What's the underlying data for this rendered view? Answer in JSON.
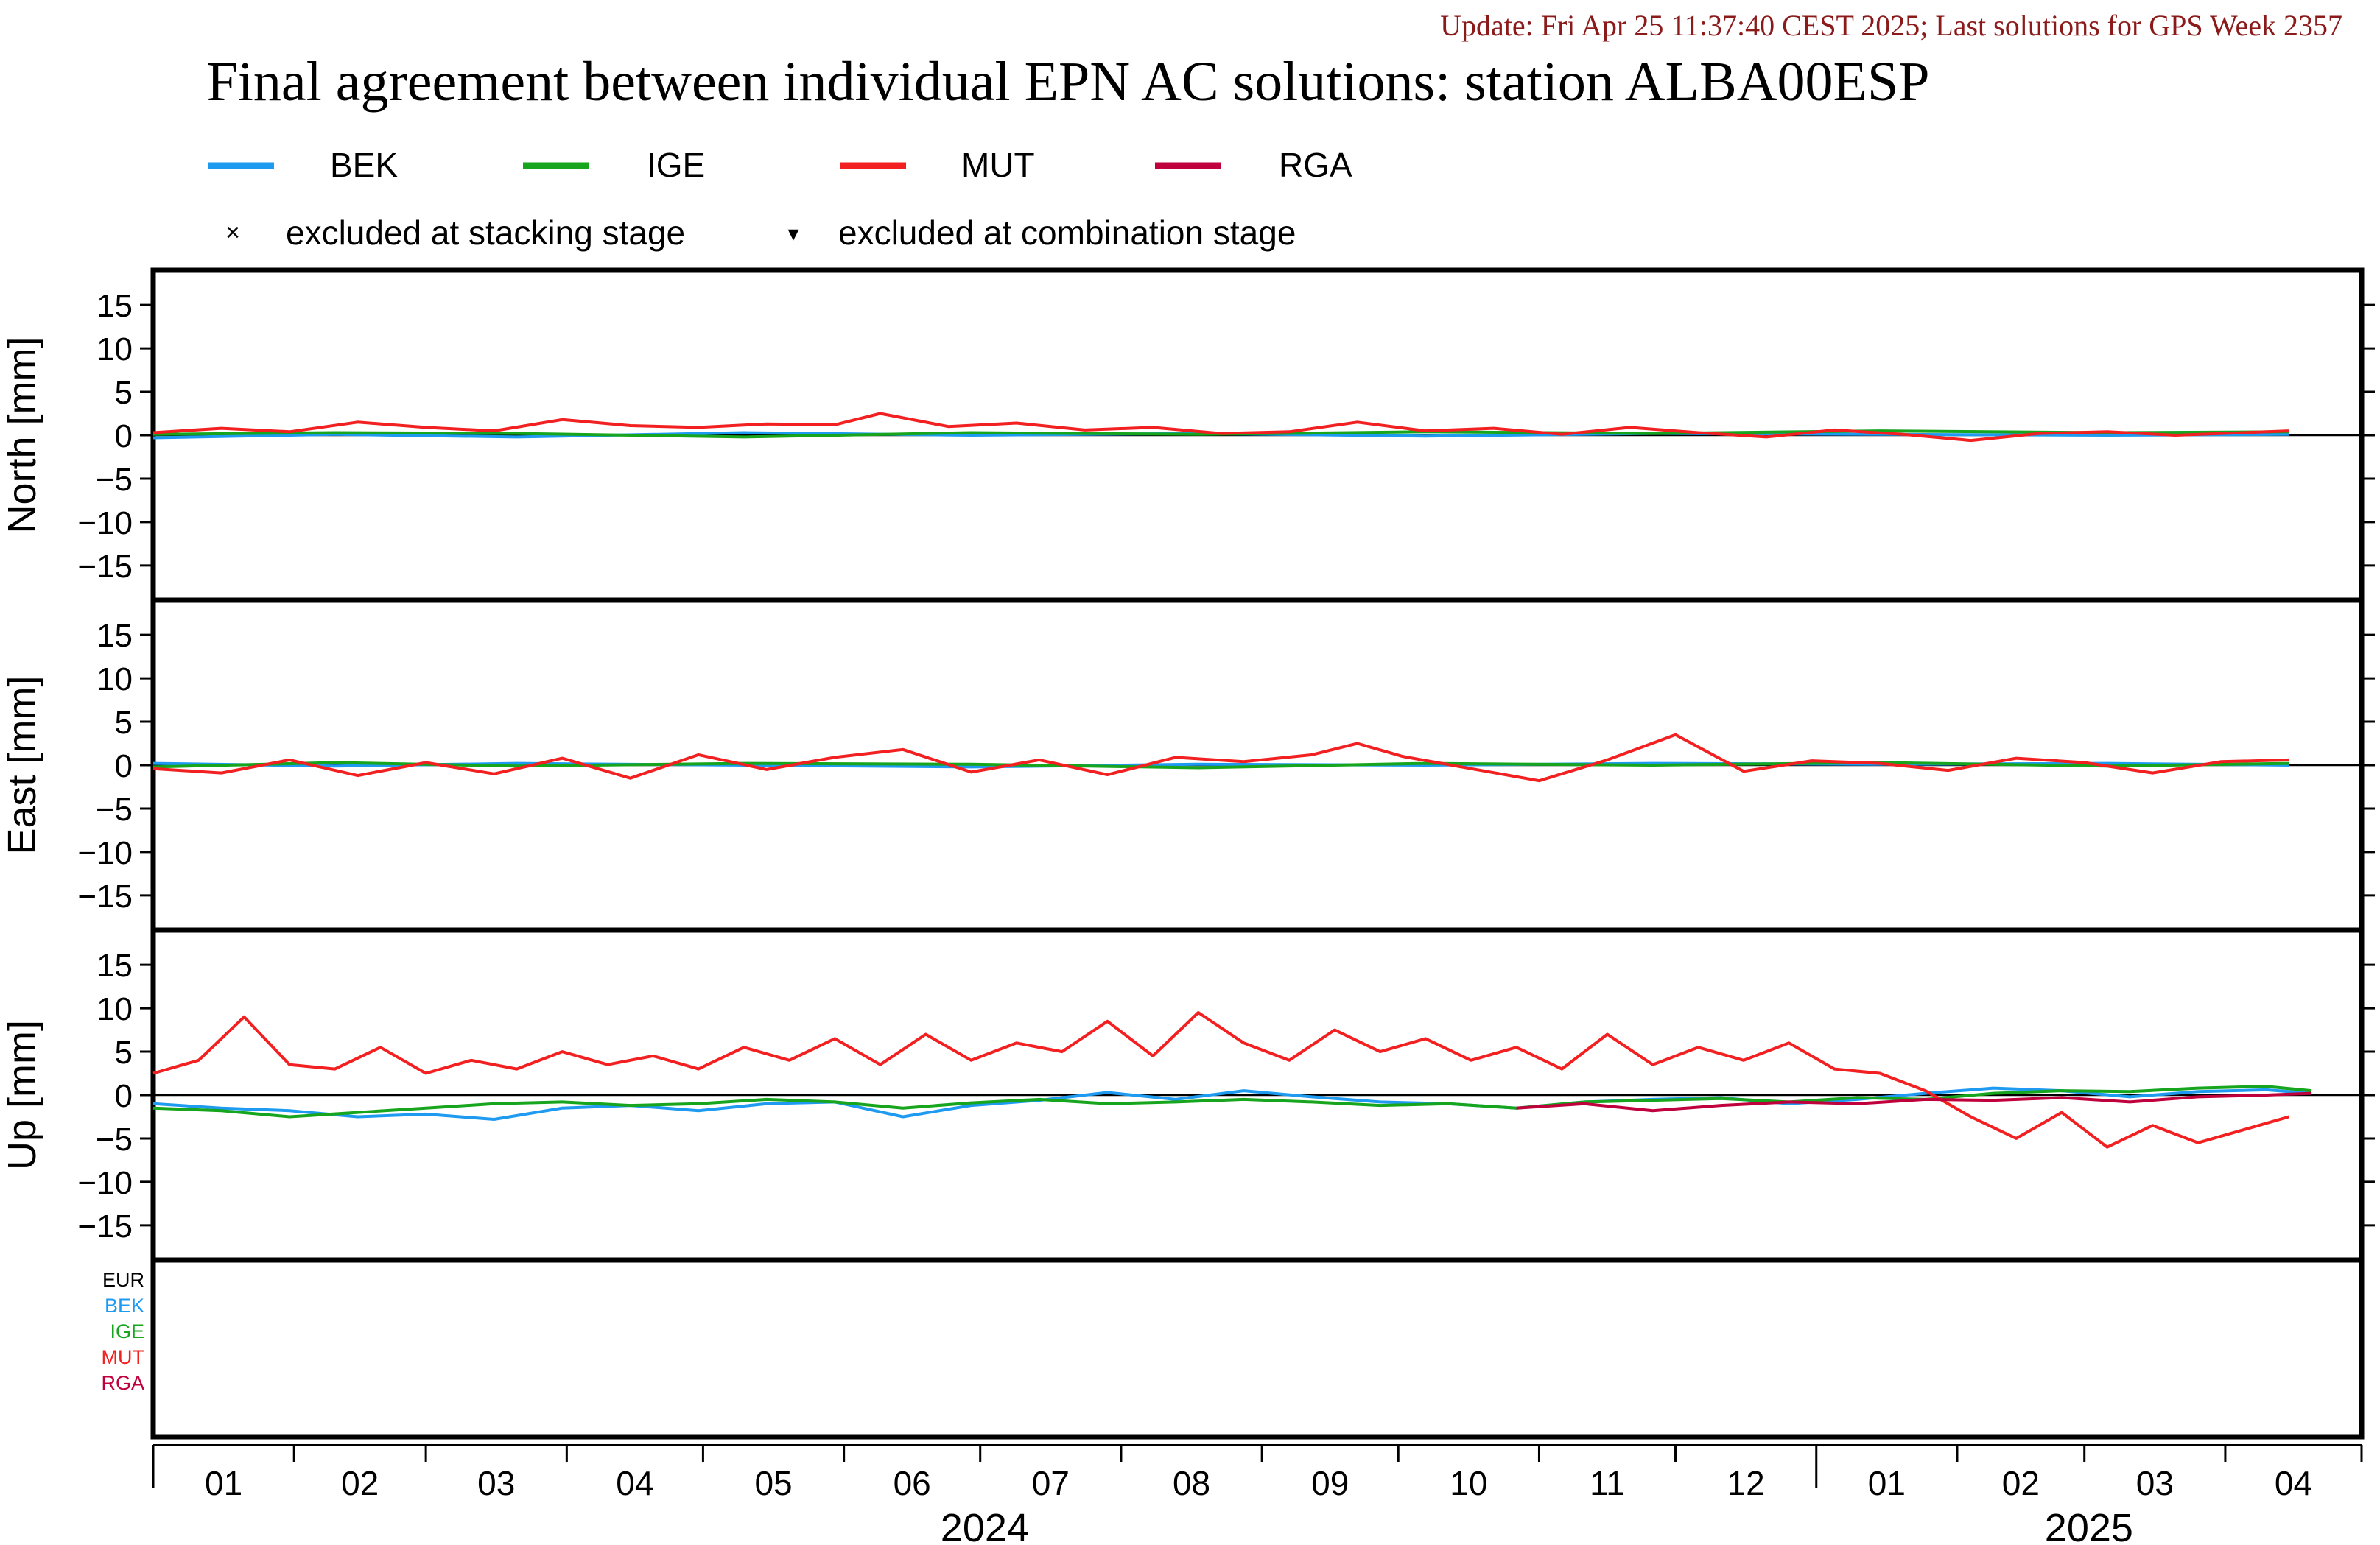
{
  "update_text": "Update: Fri Apr 25 11:37:40 CEST 2025; Last solutions for GPS Week 2357",
  "title": "Final agreement between individual EPN AC solutions: station ALBA00ESP",
  "colors": {
    "BEK": "#1e9bf0",
    "IGE": "#16a51c",
    "MUT": "#f22020",
    "RGA": "#c0003c",
    "EUR": "#000000",
    "update_text": "#8b1a1a",
    "frame": "#000000"
  },
  "legend": {
    "series": [
      {
        "key": "BEK",
        "label": "BEK"
      },
      {
        "key": "IGE",
        "label": "IGE"
      },
      {
        "key": "MUT",
        "label": "MUT"
      },
      {
        "key": "RGA",
        "label": "RGA"
      }
    ],
    "markers": [
      {
        "symbol": "×",
        "label": "excluded at stacking stage"
      },
      {
        "symbol": "▾",
        "label": "excluded at combination stage"
      }
    ]
  },
  "side_legend": [
    "EUR",
    "BEK",
    "IGE",
    "MUT",
    "RGA"
  ],
  "chart_data": [
    {
      "type": "line",
      "panel": "north",
      "ylabel": "North [mm]",
      "ylim": [
        -19,
        19
      ],
      "yticks": [
        15,
        10,
        5,
        0,
        -5,
        -10,
        -15
      ],
      "zero_line": true,
      "x_range_days": [
        0,
        483
      ],
      "series": [
        {
          "name": "BEK",
          "x": [
            0,
            40,
            80,
            130,
            180,
            230,
            280,
            330,
            380,
            430,
            470
          ],
          "y": [
            -0.3,
            0.1,
            -0.2,
            0.3,
            0.0,
            0.2,
            -0.1,
            0.2,
            0.1,
            0.0,
            0.1
          ]
        },
        {
          "name": "IGE",
          "x": [
            0,
            40,
            80,
            130,
            180,
            230,
            280,
            330,
            380,
            430,
            470
          ],
          "y": [
            0.1,
            0.3,
            0.2,
            -0.2,
            0.3,
            0.1,
            0.4,
            0.2,
            0.5,
            0.3,
            0.4
          ]
        },
        {
          "name": "MUT",
          "x": [
            0,
            15,
            30,
            45,
            60,
            75,
            90,
            105,
            120,
            135,
            150,
            160,
            175,
            190,
            205,
            220,
            235,
            250,
            265,
            280,
            295,
            310,
            325,
            340,
            355,
            370,
            385,
            400,
            415,
            430,
            445,
            460,
            470
          ],
          "y": [
            0.3,
            0.8,
            0.4,
            1.5,
            0.9,
            0.5,
            1.8,
            1.1,
            0.9,
            1.3,
            1.2,
            2.5,
            1.0,
            1.4,
            0.6,
            0.9,
            0.2,
            0.4,
            1.5,
            0.5,
            0.8,
            0.1,
            0.9,
            0.3,
            -0.2,
            0.6,
            0.1,
            -0.6,
            0.2,
            0.4,
            0.0,
            0.3,
            0.5
          ]
        }
      ]
    },
    {
      "type": "line",
      "panel": "east",
      "ylabel": "East [mm]",
      "ylim": [
        -19,
        19
      ],
      "yticks": [
        15,
        10,
        5,
        0,
        -5,
        -10,
        -15
      ],
      "zero_line": true,
      "x_range_days": [
        0,
        483
      ],
      "series": [
        {
          "name": "BEK",
          "x": [
            0,
            40,
            80,
            130,
            180,
            230,
            280,
            330,
            380,
            430,
            470
          ],
          "y": [
            0.2,
            -0.1,
            0.2,
            0.0,
            -0.2,
            0.1,
            0.0,
            0.2,
            0.1,
            0.2,
            0.0
          ]
        },
        {
          "name": "IGE",
          "x": [
            0,
            40,
            80,
            130,
            180,
            230,
            280,
            330,
            380,
            430,
            470
          ],
          "y": [
            -0.2,
            0.3,
            -0.1,
            0.2,
            0.1,
            -0.3,
            0.2,
            0.0,
            0.3,
            -0.1,
            0.2
          ]
        },
        {
          "name": "MUT",
          "x": [
            0,
            15,
            30,
            45,
            60,
            75,
            90,
            105,
            120,
            135,
            150,
            165,
            180,
            195,
            210,
            225,
            240,
            255,
            265,
            275,
            290,
            305,
            320,
            335,
            350,
            365,
            380,
            395,
            410,
            425,
            440,
            455,
            470
          ],
          "y": [
            -0.4,
            -0.9,
            0.6,
            -1.2,
            0.3,
            -1.0,
            0.8,
            -1.5,
            1.2,
            -0.5,
            0.9,
            1.8,
            -0.8,
            0.6,
            -1.1,
            0.9,
            0.4,
            1.2,
            2.5,
            1.0,
            -0.4,
            -1.8,
            0.6,
            3.5,
            -0.7,
            0.5,
            0.2,
            -0.6,
            0.8,
            0.3,
            -0.9,
            0.4,
            0.6
          ]
        }
      ]
    },
    {
      "type": "line",
      "panel": "up",
      "ylabel": "Up [mm]",
      "ylim": [
        -19,
        19
      ],
      "yticks": [
        15,
        10,
        5,
        0,
        -5,
        -10,
        -15
      ],
      "zero_line": true,
      "x_range_days": [
        0,
        483
      ],
      "series": [
        {
          "name": "BEK",
          "x": [
            0,
            15,
            30,
            45,
            60,
            75,
            90,
            105,
            120,
            135,
            150,
            165,
            180,
            195,
            210,
            225,
            240,
            255,
            270,
            285,
            300,
            315,
            330,
            345,
            360,
            375,
            390,
            405,
            420,
            435,
            450,
            465,
            475
          ],
          "y": [
            -1.0,
            -1.5,
            -1.8,
            -2.5,
            -2.2,
            -2.8,
            -1.5,
            -1.2,
            -1.8,
            -1.0,
            -0.8,
            -2.5,
            -1.2,
            -0.6,
            0.3,
            -0.5,
            0.5,
            -0.2,
            -0.8,
            -1.0,
            -1.5,
            -0.8,
            -0.5,
            -0.3,
            -1.0,
            -0.5,
            0.2,
            0.8,
            0.5,
            -0.2,
            0.4,
            0.6,
            0.2
          ]
        },
        {
          "name": "IGE",
          "x": [
            0,
            15,
            30,
            45,
            60,
            75,
            90,
            105,
            120,
            135,
            150,
            165,
            180,
            195,
            210,
            225,
            240,
            255,
            270,
            285,
            300,
            315,
            330,
            345,
            360,
            375,
            390,
            405,
            420,
            435,
            450,
            465,
            475
          ],
          "y": [
            -1.5,
            -1.8,
            -2.5,
            -2.0,
            -1.5,
            -1.0,
            -0.8,
            -1.2,
            -1.0,
            -0.5,
            -0.8,
            -1.5,
            -0.9,
            -0.5,
            -1.0,
            -0.8,
            -0.5,
            -0.8,
            -1.2,
            -1.0,
            -1.5,
            -0.8,
            -0.6,
            -0.4,
            -0.8,
            -0.3,
            -0.5,
            0.2,
            0.5,
            0.4,
            0.8,
            1.0,
            0.5
          ]
        },
        {
          "name": "MUT",
          "x": [
            0,
            10,
            20,
            30,
            40,
            50,
            60,
            70,
            80,
            90,
            100,
            110,
            120,
            130,
            140,
            150,
            160,
            170,
            180,
            190,
            200,
            210,
            220,
            230,
            240,
            250,
            260,
            270,
            280,
            290,
            300,
            310,
            320,
            330,
            340,
            350,
            360,
            370,
            380,
            390,
            400,
            410,
            420,
            430,
            440,
            450,
            460,
            470
          ],
          "y": [
            2.5,
            4.0,
            9.0,
            3.5,
            3.0,
            5.5,
            2.5,
            4.0,
            3.0,
            5.0,
            3.5,
            4.5,
            3.0,
            5.5,
            4.0,
            6.5,
            3.5,
            7.0,
            4.0,
            6.0,
            5.0,
            8.5,
            4.5,
            9.5,
            6.0,
            4.0,
            7.5,
            5.0,
            6.5,
            4.0,
            5.5,
            3.0,
            7.0,
            3.5,
            5.5,
            4.0,
            6.0,
            3.0,
            2.5,
            0.5,
            -2.5,
            -5.0,
            -2.0,
            -6.0,
            -3.5,
            -5.5,
            -4.0,
            -2.5
          ]
        },
        {
          "name": "RGA",
          "x": [
            300,
            315,
            330,
            345,
            360,
            375,
            390,
            405,
            420,
            435,
            450,
            465,
            475
          ],
          "y": [
            -1.5,
            -1.0,
            -1.8,
            -1.2,
            -0.8,
            -1.0,
            -0.5,
            -0.6,
            -0.3,
            -0.8,
            -0.2,
            0.0,
            0.2
          ]
        }
      ]
    }
  ],
  "x_axis": {
    "month_labels": [
      "01",
      "02",
      "03",
      "04",
      "05",
      "06",
      "07",
      "08",
      "09",
      "10",
      "11",
      "12",
      "01",
      "02",
      "03",
      "04"
    ],
    "month_lengths": [
      31,
      29,
      31,
      30,
      31,
      30,
      31,
      31,
      30,
      31,
      30,
      31,
      31,
      28,
      31,
      30
    ],
    "year_labels": [
      "2024",
      "2025"
    ]
  }
}
